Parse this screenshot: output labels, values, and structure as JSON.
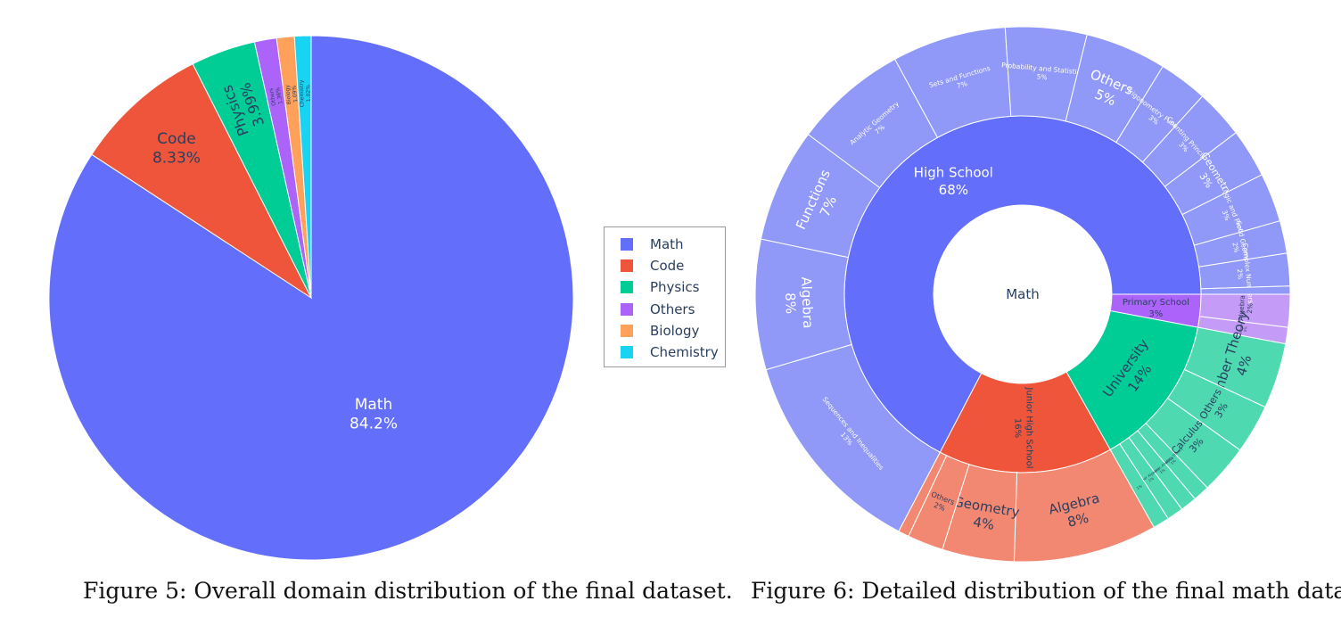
{
  "captions": {
    "fig5": "Figure 5: Overall domain distribution of the final dataset.",
    "fig6": "Figure 6: Detailed distribution of the final math data."
  },
  "chart_data": [
    {
      "type": "pie",
      "labels": [
        "Math",
        "Code",
        "Physics",
        "Others",
        "Biology",
        "Chemistry"
      ],
      "values": [
        84.2,
        8.33,
        3.99,
        1.36,
        1.09,
        1.02
      ],
      "display": [
        "84.2%",
        "8.33%",
        "3.99%",
        "1.36%",
        "1.09%",
        "1.02%"
      ],
      "colors": [
        "#636efa",
        "#ef553b",
        "#00cc96",
        "#ab63fa",
        "#ffa15a",
        "#19d3f3"
      ],
      "legend": {
        "position": "right",
        "entries": [
          "Math",
          "Code",
          "Physics",
          "Others",
          "Biology",
          "Chemistry"
        ]
      }
    },
    {
      "type": "sunburst",
      "root": "Math",
      "children": [
        {
          "name": "High School",
          "value": 68,
          "label": "68%",
          "color": "#636efa",
          "leafColor": "#9098f8",
          "children": [
            {
              "name": "Sequences and Inequalities",
              "value": 13,
              "label": "13%"
            },
            {
              "name": "Algebra",
              "value": 8,
              "label": "8%"
            },
            {
              "name": "Functions",
              "value": 7,
              "label": "7%"
            },
            {
              "name": "Analytic Geometry",
              "value": 7,
              "label": "7%"
            },
            {
              "name": "Sets and Functions",
              "value": 7,
              "label": "7%"
            },
            {
              "name": "Probability and Statistics",
              "value": 5,
              "label": "5%"
            },
            {
              "name": "Others",
              "value": 5,
              "label": "5%"
            },
            {
              "name": "Trigonometry Functions",
              "value": 3,
              "label": "3%"
            },
            {
              "name": "Counting Principles",
              "value": 3,
              "label": "3%"
            },
            {
              "name": "Geometry",
              "value": 3,
              "label": "3%"
            },
            {
              "name": "Logic and Proofs",
              "value": 3,
              "label": "3%"
            },
            {
              "name": "Solid Geometry",
              "value": 2,
              "label": "2%"
            },
            {
              "name": "Complex Numbers",
              "value": 2,
              "label": "2%"
            },
            {
              "name": "",
              "value": 0.5,
              "label": ""
            }
          ]
        },
        {
          "name": "Junior High School",
          "value": 16,
          "label": "16%",
          "color": "#ef553b",
          "leafColor": "#f28872",
          "children": [
            {
              "name": "Algebra",
              "value": 8,
              "label": "8%"
            },
            {
              "name": "Geometry",
              "value": 4,
              "label": "4%"
            },
            {
              "name": "Others",
              "value": 2,
              "label": "2%"
            },
            {
              "name": "",
              "value": 0.6,
              "label": ""
            }
          ]
        },
        {
          "name": "University",
          "value": 14,
          "label": "14%",
          "color": "#00cc96",
          "leafColor": "#4fd9b0",
          "children": [
            {
              "name": "Number Theory",
              "value": 4,
              "label": "4%"
            },
            {
              "name": "Others",
              "value": 3,
              "label": "3%"
            },
            {
              "name": "Calculus",
              "value": 3,
              "label": "3%"
            },
            {
              "name": "Probability Theory",
              "value": 1,
              "label": "1%"
            },
            {
              "name": "Geometric Analysis",
              "value": 1,
              "label": "1%"
            },
            {
              "name": "Linear Algebra",
              "value": 1,
              "label": "1%"
            },
            {
              "name": "",
              "value": 1,
              "label": "1%"
            }
          ]
        },
        {
          "name": "Primary School",
          "value": 3,
          "label": "3%",
          "color": "#ab63fa",
          "leafColor": "#c49bf6",
          "children": [
            {
              "name": "Algebra",
              "value": 2,
              "label": "2%"
            },
            {
              "name": "Others",
              "value": 1,
              "label": "1%"
            }
          ]
        }
      ]
    }
  ]
}
